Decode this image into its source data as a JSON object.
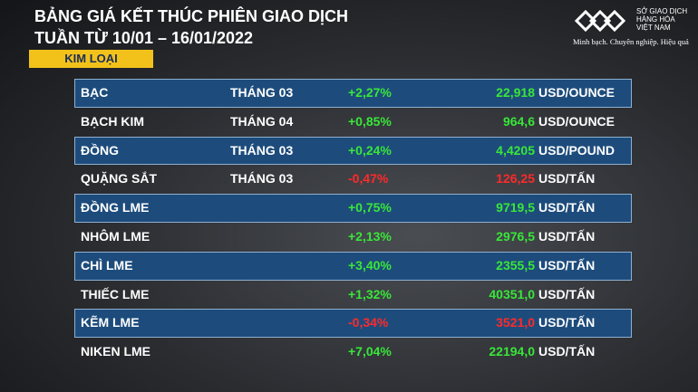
{
  "header": {
    "title_lines": [
      "BẢNG GIÁ KẾT THÚC PHIÊN GIAO DỊCH",
      "TUẦN TỪ 10/01 – 16/01/2022"
    ],
    "section": "KIM LOẠI"
  },
  "logo": {
    "name_lines": [
      "SỞ GIAO DỊCH",
      "HÀNG HÓA",
      "VIỆT NAM"
    ],
    "tagline": "Minh bạch. Chuyên nghiệp. Hiệu quả"
  },
  "table": {
    "rows": [
      {
        "name": "BẠC",
        "month": "THÁNG 03",
        "change": "+2,27%",
        "price": "22,918",
        "unit": "USD/OUNCE",
        "color": "#39e639"
      },
      {
        "name": "BẠCH KIM",
        "month": "THÁNG 04",
        "change": "+0,85%",
        "price": "964,6",
        "unit": "USD/OUNCE",
        "color": "#39e639"
      },
      {
        "name": "ĐỒNG",
        "month": "THÁNG 03",
        "change": "+0,24%",
        "price": "4,4205",
        "unit": "USD/POUND",
        "color": "#39e639"
      },
      {
        "name": "QUẶNG SẮT",
        "month": "THÁNG 03",
        "change": "-0,47%",
        "price": "126,25",
        "unit": "USD/TẤN",
        "color": "#ff2a2a"
      },
      {
        "name": "ĐỒNG LME",
        "month": "",
        "change": "+0,75%",
        "price": "9719,5",
        "unit": "USD/TẤN",
        "color": "#39e639"
      },
      {
        "name": "NHÔM LME",
        "month": "",
        "change": "+2,13%",
        "price": "2976,5",
        "unit": "USD/TẤN",
        "color": "#39e639"
      },
      {
        "name": "CHÌ LME",
        "month": "",
        "change": "+3,40%",
        "price": "2355,5",
        "unit": "USD/TẤN",
        "color": "#39e639"
      },
      {
        "name": "THIẾC LME",
        "month": "",
        "change": "+1,32%",
        "price": "40351,0",
        "unit": "USD/TẤN",
        "color": "#39e639"
      },
      {
        "name": "KẼM LME",
        "month": "",
        "change": "-0,34%",
        "price": "3521,0",
        "unit": "USD/TẤN",
        "color": "#ff2a2a"
      },
      {
        "name": "NIKEN LME",
        "month": "",
        "change": "+7,04%",
        "price": "22194,0",
        "unit": "USD/TẤN",
        "color": "#39e639"
      }
    ]
  }
}
